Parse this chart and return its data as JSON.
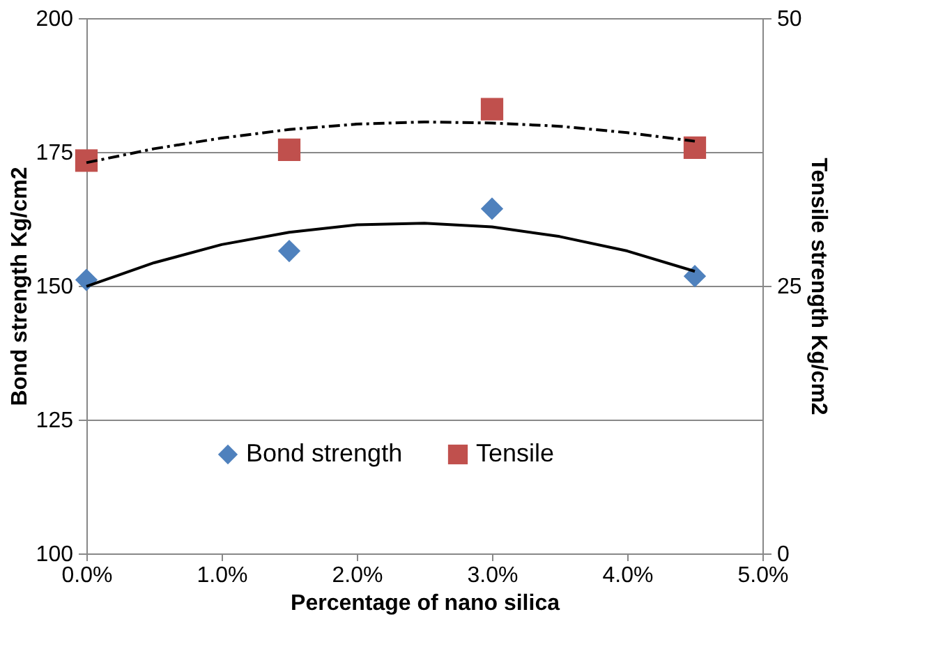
{
  "chart_data": {
    "type": "scatter",
    "xlabel": "Percentage of nano silica",
    "ylabel": "Bond strength  Kg/cm2",
    "y2label": "Tensile strength  Kg/cm2",
    "x": [
      0,
      1.5,
      3,
      4.5
    ],
    "series": [
      {
        "name": "Bond strength",
        "color": "#4f81bd",
        "marker": "diamond",
        "values": [
          151.1,
          156.5,
          164.4,
          151.8
        ]
      },
      {
        "name": "Tensile",
        "color": "#c0504d",
        "marker": "square",
        "axis": "y2",
        "values": [
          36.7,
          37.7,
          41.5,
          37.9
        ]
      },
      {
        "type": "line",
        "color": "#000000",
        "marker": "none",
        "line_style": "solid",
        "x": [
          0,
          0.5,
          1,
          1.5,
          2,
          2.5,
          3,
          3.5,
          4,
          4.5
        ],
        "values": [
          149.9,
          154.3,
          157.7,
          160.0,
          161.4,
          161.7,
          161.0,
          159.2,
          156.5,
          152.7
        ]
      },
      {
        "type": "line",
        "color": "#000000",
        "marker": "none",
        "line_style": "dashed",
        "axis": "y2",
        "x": [
          0,
          0.5,
          1,
          1.5,
          2,
          2.5,
          3,
          3.5,
          4,
          4.5
        ],
        "values": [
          36.5,
          37.8,
          38.8,
          39.6,
          40.1,
          40.3,
          40.2,
          39.9,
          39.3,
          38.5
        ]
      }
    ],
    "xlim": [
      0,
      5
    ],
    "xticks": [
      {
        "value": 0,
        "label": "0.0%"
      },
      {
        "value": 1,
        "label": "1.0%"
      },
      {
        "value": 2,
        "label": "2.0%"
      },
      {
        "value": 3,
        "label": "3.0%"
      },
      {
        "value": 4,
        "label": "4.0%"
      },
      {
        "value": 5,
        "label": "5.0%"
      }
    ],
    "ylim": [
      100,
      200
    ],
    "yticks": [
      100,
      125,
      150,
      175,
      200
    ],
    "y2lim": [
      0,
      50
    ],
    "y2ticks": [
      0,
      25,
      50
    ],
    "grid": "y",
    "legend": "bottom"
  }
}
